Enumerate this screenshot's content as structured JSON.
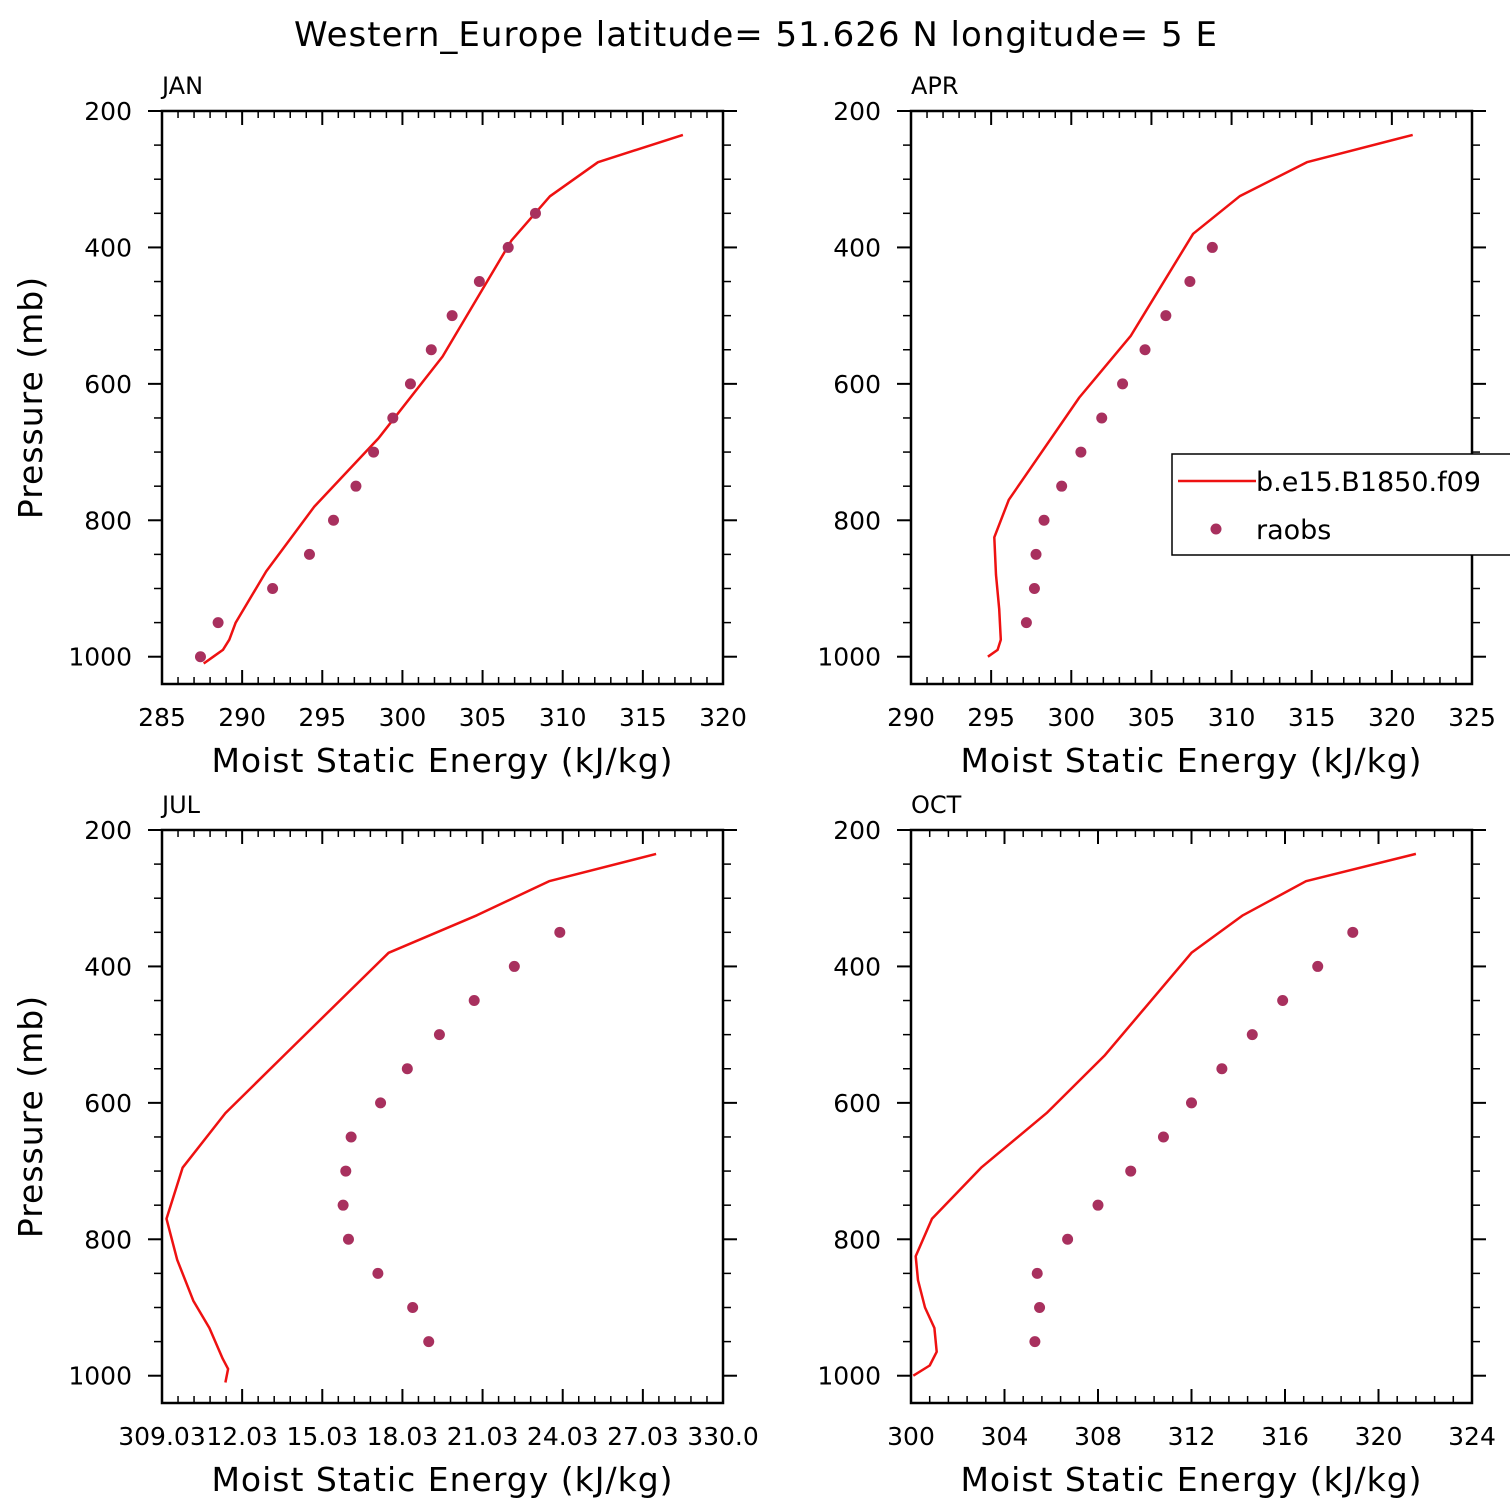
{
  "title": "Western_Europe  latitude= 51.626 N longitude= 5 E",
  "colors": {
    "model_line": "#ee1111",
    "obs_marker": "#a8305e",
    "axes": "#000000"
  },
  "legend": {
    "model_label": "b.e15.B1850.f09",
    "obs_label": "raobs",
    "placement": "right edge of APR panel"
  },
  "chart_data": [
    {
      "type": "line",
      "panel": "JAN",
      "xlabel": "Moist Static Energy (kJ/kg)",
      "ylabel": "Pressure (mb)",
      "xlim": [
        285,
        320
      ],
      "ylim": [
        1040,
        200
      ],
      "x_ticks": [
        "285",
        "290",
        "295",
        "300",
        "305",
        "310",
        "315",
        "320"
      ],
      "y_ticks": [
        "200",
        "400",
        "600",
        "800",
        "1000"
      ],
      "series": [
        {
          "name": "b.e15.B1850.f09",
          "style": "line",
          "points": [
            [
              287.6,
              1010
            ],
            [
              288.2,
              1000
            ],
            [
              288.8,
              990
            ],
            [
              289.2,
              975
            ],
            [
              289.6,
              950
            ],
            [
              291.5,
              875
            ],
            [
              294.5,
              780
            ],
            [
              298.5,
              680
            ],
            [
              302.5,
              560
            ],
            [
              306.8,
              390
            ],
            [
              309.2,
              325
            ],
            [
              312.2,
              275
            ],
            [
              317.5,
              235
            ]
          ]
        },
        {
          "name": "raobs",
          "style": "markers",
          "points": [
            [
              287.4,
              1000
            ],
            [
              288.5,
              950
            ],
            [
              291.9,
              900
            ],
            [
              294.2,
              850
            ],
            [
              295.7,
              800
            ],
            [
              297.1,
              750
            ],
            [
              298.2,
              700
            ],
            [
              299.4,
              650
            ],
            [
              300.5,
              600
            ],
            [
              301.8,
              550
            ],
            [
              303.1,
              500
            ],
            [
              304.8,
              450
            ],
            [
              306.6,
              400
            ],
            [
              308.3,
              350
            ]
          ]
        }
      ]
    },
    {
      "type": "line",
      "panel": "APR",
      "xlabel": "Moist Static Energy (kJ/kg)",
      "ylabel": "",
      "xlim": [
        290,
        325
      ],
      "ylim": [
        1040,
        200
      ],
      "x_ticks": [
        "290",
        "295",
        "300",
        "305",
        "310",
        "315",
        "320",
        "325"
      ],
      "y_ticks": [
        "200",
        "400",
        "600",
        "800",
        "1000"
      ],
      "series": [
        {
          "name": "b.e15.B1850.f09",
          "style": "line",
          "points": [
            [
              294.8,
              1000
            ],
            [
              295.4,
              990
            ],
            [
              295.6,
              975
            ],
            [
              295.5,
              930
            ],
            [
              295.3,
              880
            ],
            [
              295.2,
              825
            ],
            [
              296.1,
              770
            ],
            [
              300.5,
              620
            ],
            [
              303.7,
              530
            ],
            [
              307.6,
              380
            ],
            [
              310.5,
              325
            ],
            [
              314.7,
              275
            ],
            [
              321.3,
              235
            ]
          ]
        },
        {
          "name": "raobs",
          "style": "markers",
          "points": [
            [
              297.2,
              950
            ],
            [
              297.7,
              900
            ],
            [
              297.8,
              850
            ],
            [
              298.3,
              800
            ],
            [
              299.4,
              750
            ],
            [
              300.6,
              700
            ],
            [
              301.9,
              650
            ],
            [
              303.2,
              600
            ],
            [
              304.6,
              550
            ],
            [
              305.9,
              500
            ],
            [
              307.4,
              450
            ],
            [
              308.8,
              400
            ]
          ]
        }
      ]
    },
    {
      "type": "line",
      "panel": "JUL",
      "xlabel": "Moist Static Energy (kJ/kg)",
      "ylabel": "Pressure (mb)",
      "xlim": [
        309.03,
        330.0
      ],
      "ylim": [
        1040,
        200
      ],
      "x_ticks": [
        "309.03",
        "12.03",
        "15.03",
        "18.03",
        "21.03",
        "24.03",
        "27.03",
        "330.0"
      ],
      "y_ticks": [
        "200",
        "400",
        "600",
        "800",
        "1000"
      ],
      "series": [
        {
          "name": "b.e15.B1850.f09",
          "style": "line",
          "points": [
            [
              311.4,
              1010
            ],
            [
              311.5,
              990
            ],
            [
              311.3,
              975
            ],
            [
              310.8,
              930
            ],
            [
              310.2,
              890
            ],
            [
              309.6,
              830
            ],
            [
              309.2,
              770
            ],
            [
              309.8,
              695
            ],
            [
              311.4,
              615
            ],
            [
              313.6,
              530
            ],
            [
              317.5,
              380
            ],
            [
              320.8,
              325
            ],
            [
              323.5,
              275
            ],
            [
              327.5,
              235
            ]
          ]
        },
        {
          "name": "raobs",
          "style": "markers",
          "points": [
            [
              319.0,
              950
            ],
            [
              318.4,
              900
            ],
            [
              317.1,
              850
            ],
            [
              316.0,
              800
            ],
            [
              315.8,
              750
            ],
            [
              315.9,
              700
            ],
            [
              316.1,
              650
            ],
            [
              317.2,
              600
            ],
            [
              318.2,
              550
            ],
            [
              319.4,
              500
            ],
            [
              320.7,
              450
            ],
            [
              322.2,
              400
            ],
            [
              323.9,
              350
            ]
          ]
        }
      ]
    },
    {
      "type": "line",
      "panel": "OCT",
      "xlabel": "Moist Static Energy (kJ/kg)",
      "ylabel": "",
      "xlim": [
        300,
        324
      ],
      "ylim": [
        1040,
        200
      ],
      "x_ticks": [
        "300",
        "304",
        "308",
        "312",
        "316",
        "320",
        "324"
      ],
      "y_ticks": [
        "200",
        "400",
        "600",
        "800",
        "1000"
      ],
      "series": [
        {
          "name": "b.e15.B1850.f09",
          "style": "line",
          "points": [
            [
              300.1,
              1000
            ],
            [
              300.8,
              985
            ],
            [
              301.1,
              965
            ],
            [
              301.0,
              930
            ],
            [
              300.6,
              900
            ],
            [
              300.3,
              860
            ],
            [
              300.2,
              825
            ],
            [
              300.9,
              770
            ],
            [
              303.0,
              695
            ],
            [
              305.8,
              615
            ],
            [
              308.3,
              530
            ],
            [
              312.0,
              380
            ],
            [
              314.2,
              325
            ],
            [
              316.9,
              275
            ],
            [
              321.6,
              235
            ]
          ]
        },
        {
          "name": "raobs",
          "style": "markers",
          "points": [
            [
              305.3,
              950
            ],
            [
              305.5,
              900
            ],
            [
              305.4,
              850
            ],
            [
              306.7,
              800
            ],
            [
              308.0,
              750
            ],
            [
              309.4,
              700
            ],
            [
              310.8,
              650
            ],
            [
              312.0,
              600
            ],
            [
              313.3,
              550
            ],
            [
              314.6,
              500
            ],
            [
              315.9,
              450
            ],
            [
              317.4,
              400
            ],
            [
              318.9,
              350
            ]
          ]
        }
      ]
    }
  ]
}
